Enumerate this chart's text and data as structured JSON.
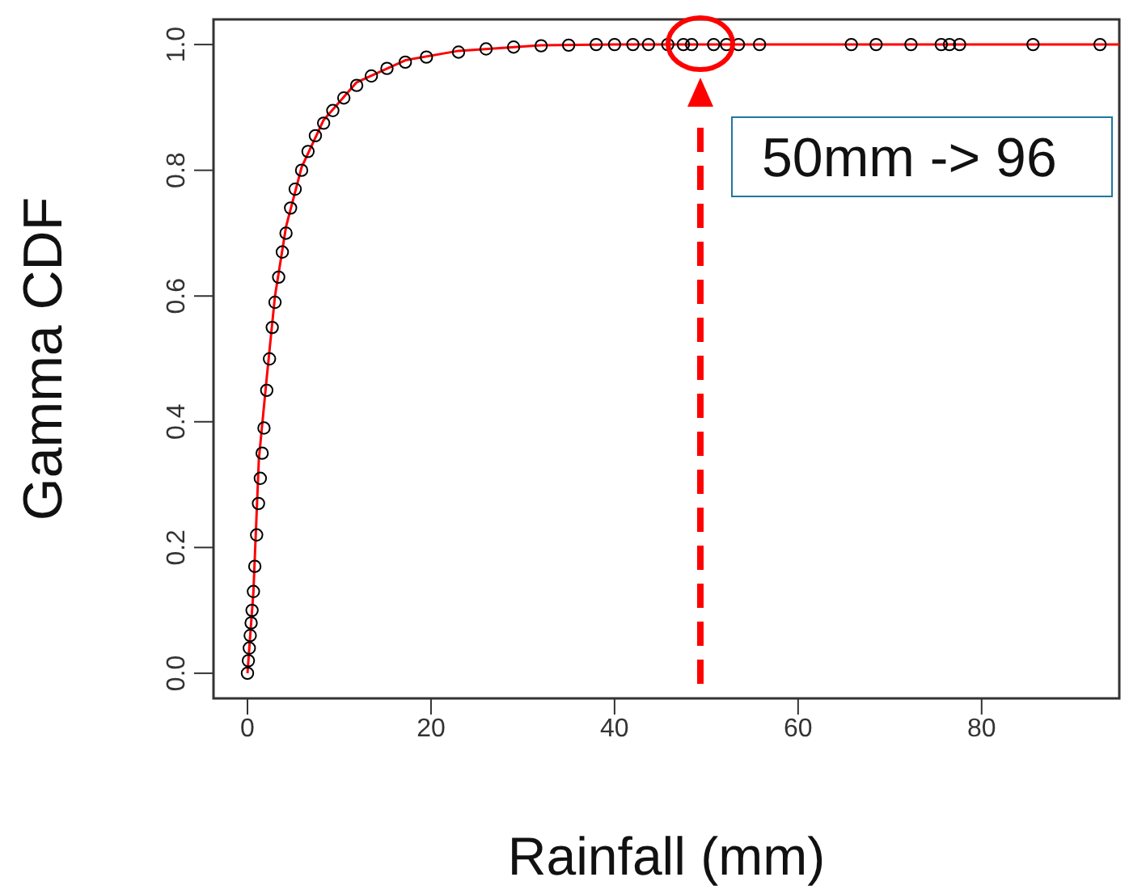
{
  "chart_data": {
    "type": "scatter",
    "xlabel": "Rainfall (mm)",
    "ylabel": "Gamma CDF",
    "annotations": [
      "50mm -> 96"
    ],
    "xlim": [
      -3.7,
      95
    ],
    "ylim": [
      -0.04,
      1.04
    ],
    "xticks": [
      0,
      20,
      40,
      60,
      80
    ],
    "yticks": [
      {
        "value": 0,
        "label": "0.0"
      },
      {
        "value": 0.2,
        "label": "0.2"
      },
      {
        "value": 0.4,
        "label": "0.4"
      },
      {
        "value": 0.6,
        "label": "0.6"
      },
      {
        "value": 0.8,
        "label": "0.8"
      },
      {
        "value": 1,
        "label": "1.0"
      }
    ],
    "grid": false,
    "legend": false,
    "series": [
      {
        "color": "#000000",
        "marker": "circle",
        "x": [
          0,
          0.1,
          0.2,
          0.3,
          0.4,
          0.5,
          0.65,
          0.8,
          1.0,
          1.2,
          1.4,
          1.6,
          1.8,
          2.1,
          2.4,
          2.7,
          3.0,
          3.4,
          3.8,
          4.2,
          4.7,
          5.2,
          5.9,
          6.6,
          7.4,
          8.3,
          9.3,
          10.5,
          11.9,
          13.5,
          15.2,
          17.2,
          19.5,
          23,
          26,
          29,
          32,
          35,
          38,
          40,
          42,
          43.7,
          45.8,
          47.5,
          48.4,
          50.8,
          52.2,
          53.5,
          55.8,
          65.8,
          68.5,
          72.3,
          75.6,
          76.5,
          77.6,
          85.6,
          92.9
        ],
        "values": [
          0.0,
          0.02,
          0.04,
          0.06,
          0.08,
          0.1,
          0.13,
          0.17,
          0.22,
          0.27,
          0.31,
          0.35,
          0.39,
          0.45,
          0.5,
          0.55,
          0.59,
          0.63,
          0.67,
          0.7,
          0.74,
          0.77,
          0.8,
          0.83,
          0.855,
          0.875,
          0.895,
          0.915,
          0.935,
          0.95,
          0.962,
          0.972,
          0.98,
          0.988,
          0.993,
          0.996,
          0.998,
          0.999,
          1.0,
          1.0,
          1.0,
          1.0,
          1.0,
          1.0,
          1.0,
          1.0,
          1.0,
          1.0,
          1.0,
          1.0,
          1.0,
          1.0,
          1.0,
          1.0,
          1.0,
          1.0,
          1.0
        ]
      },
      {
        "type": "line",
        "color": "#ff0000",
        "marker": "none",
        "x": [
          0,
          0.65,
          1.24,
          2.1,
          3.0,
          4.2,
          5.9,
          8.3,
          11.9,
          17.2,
          23,
          32,
          40,
          60,
          80,
          95
        ],
        "values": [
          0.0,
          0.13,
          0.34,
          0.47,
          0.6,
          0.71,
          0.805,
          0.88,
          0.94,
          0.975,
          0.99,
          0.999,
          1.0,
          1.0,
          1.0,
          1.0
        ]
      }
    ]
  }
}
